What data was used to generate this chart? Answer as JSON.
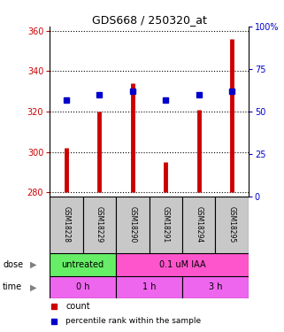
{
  "title": "GDS668 / 250320_at",
  "samples": [
    "GSM18228",
    "GSM18229",
    "GSM18290",
    "GSM18291",
    "GSM18294",
    "GSM18295"
  ],
  "count_values": [
    302,
    320,
    334,
    295,
    321,
    356
  ],
  "percentile_values": [
    57,
    60,
    62,
    57,
    60,
    62
  ],
  "count_baseline": 280,
  "ylim_left": [
    278,
    362
  ],
  "yticks_left": [
    280,
    300,
    320,
    340,
    360
  ],
  "ylim_right": [
    0,
    100
  ],
  "yticks_right": [
    0,
    25,
    50,
    75,
    100
  ],
  "bar_color": "#cc0000",
  "dot_color": "#0000cc",
  "sample_box_color": "#c8c8c8",
  "dose_green_color": "#66ee66",
  "dose_pink_color": "#ff55cc",
  "time_pink_color": "#ee66ee",
  "ylabel_left_color": "#cc0000",
  "ylabel_right_color": "#0000cc",
  "legend_count_color": "#cc0000",
  "legend_pct_color": "#0000cc"
}
